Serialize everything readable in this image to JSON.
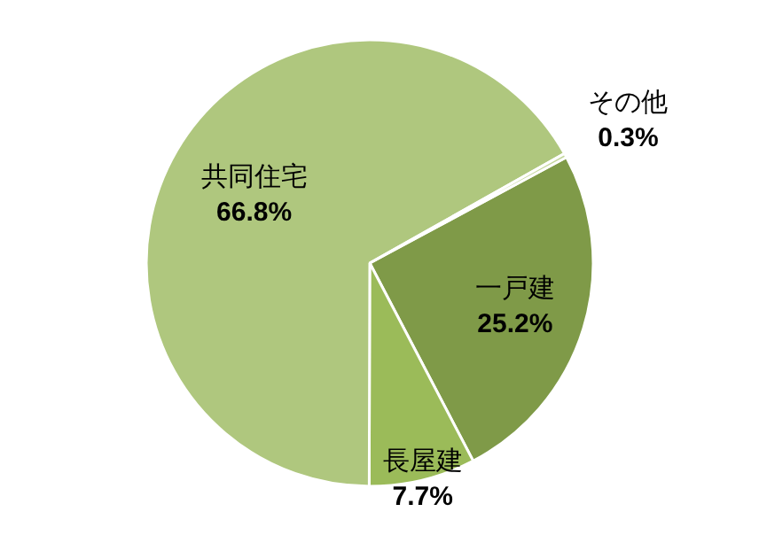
{
  "chart_data": {
    "type": "pie",
    "categories": [
      "一戸建",
      "長屋建",
      "共同住宅",
      "その他"
    ],
    "values": [
      25.2,
      7.7,
      66.8,
      0.3
    ],
    "colors": [
      "#7f9a48",
      "#9bbb59",
      "#afc77e",
      "#c3d69b"
    ],
    "value_labels": [
      "25.2%",
      "7.7%",
      "66.8%",
      "0.3%"
    ]
  }
}
